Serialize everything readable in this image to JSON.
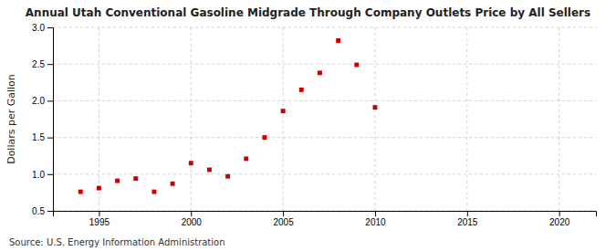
{
  "chart_data": {
    "type": "scatter",
    "title": "Annual Utah Conventional Gasoline Midgrade Through Company Outlets Price by All Sellers",
    "y_label": "Dollars per Gallon",
    "annotations": [
      "Source: U.S. Energy Information Administration"
    ],
    "x": [
      1994,
      1995,
      1996,
      1997,
      1998,
      1999,
      2000,
      2001,
      2002,
      2003,
      2004,
      2005,
      2006,
      2007,
      2008,
      2009,
      2010
    ],
    "values": [
      0.76,
      0.81,
      0.91,
      0.94,
      0.76,
      0.87,
      1.15,
      1.06,
      0.97,
      1.21,
      1.5,
      1.86,
      2.15,
      2.38,
      2.82,
      2.49,
      1.91
    ],
    "color": "#cc0000",
    "marker": "square",
    "xlim": [
      1992.5,
      2022
    ],
    "ylim": [
      0.5,
      3.0
    ],
    "xticks": [
      1995,
      2000,
      2005,
      2010,
      2015,
      2020
    ],
    "yticks": [
      0.5,
      {
        "value": 1.0,
        "label": "1.0"
      },
      1.5,
      {
        "value": 2.0,
        "label": "2.0"
      },
      2.5,
      {
        "value": 3.0,
        "label": "3.0"
      }
    ],
    "grid": true
  }
}
